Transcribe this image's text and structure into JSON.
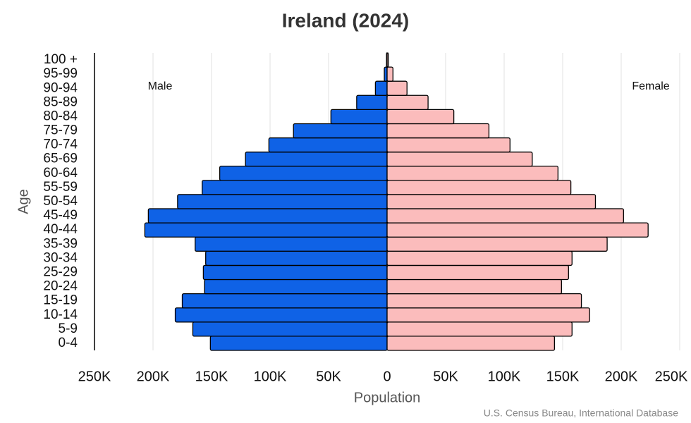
{
  "chart_data": {
    "type": "pyramid",
    "title": "Ireland (2024)",
    "x_label": "Population",
    "y_label": "Age",
    "source": "U.S. Census Bureau, International Database",
    "categories": [
      "0-4",
      "5-9",
      "10-14",
      "15-19",
      "20-24",
      "25-29",
      "30-34",
      "35-39",
      "40-44",
      "45-49",
      "50-54",
      "55-59",
      "60-64",
      "65-69",
      "70-74",
      "75-79",
      "80-84",
      "85-89",
      "90-94",
      "95-99",
      "100 +"
    ],
    "series": [
      {
        "name": "Male",
        "color": "#0f62e6",
        "side": "left",
        "values": [
          151000,
          166000,
          181000,
          175000,
          156000,
          157000,
          155000,
          164000,
          207000,
          204000,
          179000,
          158000,
          143000,
          121000,
          101000,
          80000,
          48000,
          26000,
          10000,
          2400,
          500
        ]
      },
      {
        "name": "Female",
        "color": "#fbbcbc",
        "side": "right",
        "values": [
          143000,
          158000,
          173000,
          166000,
          149000,
          155000,
          158000,
          188000,
          223000,
          202000,
          178000,
          157000,
          146000,
          124000,
          105000,
          87000,
          57000,
          35000,
          17000,
          5000,
          1000
        ]
      }
    ],
    "xlim": [
      -250000,
      250000
    ],
    "xticks": [
      {
        "value": -250000,
        "label": "250K"
      },
      {
        "value": -200000,
        "label": "200K"
      },
      {
        "value": -150000,
        "label": "150K"
      },
      {
        "value": -100000,
        "label": "100K"
      },
      {
        "value": -50000,
        "label": "50K"
      },
      0,
      {
        "value": 50000,
        "label": "50K"
      },
      {
        "value": 100000,
        "label": "100K"
      },
      {
        "value": 150000,
        "label": "150K"
      },
      {
        "value": 200000,
        "label": "200K"
      },
      {
        "value": 250000,
        "label": "250K"
      }
    ],
    "grid": true
  }
}
